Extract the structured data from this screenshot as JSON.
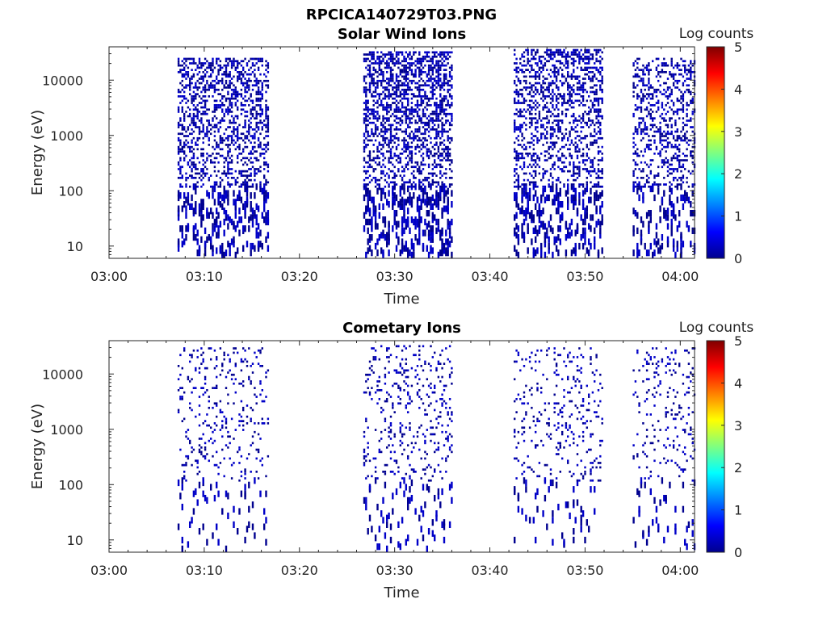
{
  "figure_title": "RPCICA140729T03.PNG",
  "chart_data": [
    {
      "type": "heatmap",
      "title": "Solar Wind Ions",
      "xlabel": "Time",
      "ylabel": "Energy (eV)",
      "colorbar_label": "Log counts",
      "colorbar_ticks": [
        "0",
        "1",
        "2",
        "3",
        "4",
        "5"
      ],
      "clim": [
        0,
        5
      ],
      "x_ticks": [
        "03:00",
        "03:10",
        "03:20",
        "03:30",
        "03:40",
        "03:50",
        "04:00"
      ],
      "xlim_minutes": [
        0,
        61.5
      ],
      "y_ticks": [
        "10",
        "100",
        "1000",
        "10000"
      ],
      "y_scale": "log",
      "ylim": [
        6,
        40000
      ],
      "grid": false,
      "bursts": [
        {
          "start_min": 7.2,
          "end_min": 16.6,
          "density": 0.4,
          "max_log_energy": 4.4,
          "seed": 11
        },
        {
          "start_min": 26.7,
          "end_min": 36.0,
          "density": 0.45,
          "max_log_energy": 4.5,
          "seed": 23
        },
        {
          "start_min": 42.5,
          "end_min": 51.8,
          "density": 0.38,
          "max_log_energy": 4.55,
          "seed": 37
        },
        {
          "start_min": 55.0,
          "end_min": 61.5,
          "density": 0.3,
          "max_log_energy": 4.4,
          "seed": 53
        }
      ]
    },
    {
      "type": "heatmap",
      "title": "Cometary Ions",
      "xlabel": "Time",
      "ylabel": "Energy (eV)",
      "colorbar_label": "Log counts",
      "colorbar_ticks": [
        "0",
        "1",
        "2",
        "3",
        "4",
        "5"
      ],
      "clim": [
        0,
        5
      ],
      "x_ticks": [
        "03:00",
        "03:10",
        "03:20",
        "03:30",
        "03:40",
        "03:50",
        "04:00"
      ],
      "xlim_minutes": [
        0,
        61.5
      ],
      "y_ticks": [
        "10",
        "100",
        "1000",
        "10000"
      ],
      "y_scale": "log",
      "ylim": [
        6,
        40000
      ],
      "grid": false,
      "bursts": [
        {
          "start_min": 7.2,
          "end_min": 16.6,
          "density": 0.1,
          "max_log_energy": 4.45,
          "seed": 71
        },
        {
          "start_min": 26.7,
          "end_min": 36.0,
          "density": 0.12,
          "max_log_energy": 4.5,
          "seed": 83
        },
        {
          "start_min": 42.5,
          "end_min": 51.8,
          "density": 0.1,
          "max_log_energy": 4.45,
          "seed": 97
        },
        {
          "start_min": 55.0,
          "end_min": 61.5,
          "density": 0.1,
          "max_log_energy": 4.45,
          "seed": 101
        }
      ]
    }
  ],
  "colors": {
    "data_low": "#00008f",
    "data_mid": "#0000c8",
    "axis": "#262626"
  }
}
